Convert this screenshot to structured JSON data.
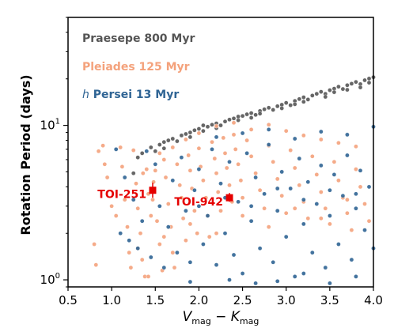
{
  "chart_data": {
    "type": "scatter",
    "xlabel": {
      "base1": "V",
      "sub1": "mag",
      "sep": " − ",
      "base2": "K",
      "sub2": "mag"
    },
    "ylabel": "Rotation Period (days)",
    "xlim": [
      0.5,
      4.0
    ],
    "ylim": [
      0.9,
      50
    ],
    "yscale": "log",
    "grid": false,
    "legend_position": "top-left",
    "x_ticks": [
      0.5,
      1.0,
      1.5,
      2.0,
      2.5,
      3.0,
      3.5,
      4.0
    ],
    "x_tick_labels": [
      "0.5",
      "1.0",
      "1.5",
      "2.0",
      "2.5",
      "3.0",
      "3.5",
      "4.0"
    ],
    "y_major_ticks": [
      1,
      10
    ],
    "y_tick_labels": [
      {
        "base": "10",
        "exp": "0"
      },
      {
        "base": "10",
        "exp": "1"
      }
    ],
    "legend": [
      {
        "series": "praesepe",
        "text": "Praesepe 800 Myr"
      },
      {
        "series": "pleiades",
        "text": "Pleiades 125 Myr"
      },
      {
        "series": "hpersei",
        "prefix": "h",
        "text": " Persei 13 Myr"
      }
    ],
    "series": [
      {
        "key": "praesepe",
        "name": "Praesepe 800 Myr",
        "color": "#555555",
        "points": [
          [
            1.25,
            4.9
          ],
          [
            1.3,
            6.2
          ],
          [
            1.35,
            6.6
          ],
          [
            1.45,
            7.2
          ],
          [
            1.5,
            6.8
          ],
          [
            1.55,
            7.5
          ],
          [
            1.6,
            7.8
          ],
          [
            1.65,
            8.0
          ],
          [
            1.7,
            8.2
          ],
          [
            1.75,
            7.9
          ],
          [
            1.8,
            8.6
          ],
          [
            1.85,
            8.8
          ],
          [
            1.9,
            9.0
          ],
          [
            1.95,
            9.3
          ],
          [
            2.0,
            9.5
          ],
          [
            2.05,
            9.2
          ],
          [
            2.1,
            9.8
          ],
          [
            2.15,
            10.1
          ],
          [
            2.2,
            10.3
          ],
          [
            2.25,
            10.0
          ],
          [
            2.3,
            10.6
          ],
          [
            2.35,
            10.9
          ],
          [
            2.4,
            11.1
          ],
          [
            2.45,
            10.8
          ],
          [
            2.5,
            11.5
          ],
          [
            2.55,
            11.8
          ],
          [
            2.6,
            12.0
          ],
          [
            2.65,
            11.7
          ],
          [
            2.7,
            12.4
          ],
          [
            2.75,
            12.7
          ],
          [
            2.8,
            13.0
          ],
          [
            2.85,
            12.6
          ],
          [
            2.9,
            13.3
          ],
          [
            2.95,
            13.6
          ],
          [
            3.0,
            14.0
          ],
          [
            3.05,
            13.5
          ],
          [
            3.1,
            14.4
          ],
          [
            3.15,
            14.8
          ],
          [
            3.2,
            15.2
          ],
          [
            3.25,
            14.7
          ],
          [
            3.3,
            15.6
          ],
          [
            3.35,
            16.0
          ],
          [
            3.4,
            16.5
          ],
          [
            3.45,
            16.0
          ],
          [
            3.5,
            16.9
          ],
          [
            3.55,
            17.3
          ],
          [
            3.6,
            17.8
          ],
          [
            3.65,
            17.2
          ],
          [
            3.7,
            18.2
          ],
          [
            3.75,
            18.6
          ],
          [
            3.8,
            19.1
          ],
          [
            3.85,
            18.5
          ],
          [
            3.9,
            19.6
          ],
          [
            3.95,
            20.1
          ],
          [
            4.0,
            20.5
          ],
          [
            1.6,
            7.1
          ],
          [
            1.9,
            8.4
          ],
          [
            2.2,
            9.6
          ],
          [
            2.45,
            11.4
          ],
          [
            2.7,
            11.9
          ],
          [
            2.95,
            12.9
          ],
          [
            3.2,
            14.2
          ],
          [
            3.45,
            15.3
          ],
          [
            3.7,
            17.0
          ],
          [
            3.95,
            18.9
          ],
          [
            2.05,
            10.0
          ],
          [
            2.6,
            11.2
          ],
          [
            3.1,
            13.7
          ],
          [
            3.55,
            16.4
          ],
          [
            3.85,
            17.6
          ]
        ]
      },
      {
        "key": "pleiades",
        "name": "Pleiades 125 Myr",
        "color": "#f4a27c",
        "points": [
          [
            0.8,
            1.7
          ],
          [
            0.82,
            1.25
          ],
          [
            0.85,
            6.8
          ],
          [
            0.9,
            7.4
          ],
          [
            0.92,
            5.6
          ],
          [
            0.95,
            4.6
          ],
          [
            1.0,
            3.0
          ],
          [
            1.05,
            2.6
          ],
          [
            1.1,
            7.2
          ],
          [
            1.12,
            5.4
          ],
          [
            1.15,
            3.3
          ],
          [
            1.18,
            2.2
          ],
          [
            1.2,
            1.5
          ],
          [
            1.22,
            1.2
          ],
          [
            1.25,
            6.9
          ],
          [
            1.28,
            4.2
          ],
          [
            1.3,
            2.9
          ],
          [
            1.33,
            2.0
          ],
          [
            1.35,
            1.35
          ],
          [
            1.38,
            1.05
          ],
          [
            1.4,
            5.2
          ],
          [
            1.42,
            3.6
          ],
          [
            1.45,
            2.6
          ],
          [
            1.47,
            3.3
          ],
          [
            1.48,
            4.3
          ],
          [
            1.5,
            5.1
          ],
          [
            1.52,
            2.4
          ],
          [
            1.55,
            1.7
          ],
          [
            1.58,
            1.15
          ],
          [
            1.6,
            6.0
          ],
          [
            1.62,
            4.6
          ],
          [
            1.65,
            3.1
          ],
          [
            1.68,
            2.2
          ],
          [
            1.7,
            1.5
          ],
          [
            1.72,
            1.2
          ],
          [
            1.75,
            5.6
          ],
          [
            1.78,
            4.1
          ],
          [
            1.8,
            3.4
          ],
          [
            1.82,
            2.5
          ],
          [
            1.85,
            1.8
          ],
          [
            1.88,
            6.4
          ],
          [
            1.9,
            5.1
          ],
          [
            1.92,
            3.9
          ],
          [
            1.95,
            2.8
          ],
          [
            1.98,
            2.0
          ],
          [
            2.0,
            7.1
          ],
          [
            2.02,
            5.4
          ],
          [
            2.05,
            4.4
          ],
          [
            2.08,
            3.4
          ],
          [
            2.1,
            2.6
          ],
          [
            2.12,
            1.9
          ],
          [
            2.15,
            7.8
          ],
          [
            2.18,
            6.1
          ],
          [
            2.2,
            4.9
          ],
          [
            2.22,
            3.7
          ],
          [
            2.25,
            2.8
          ],
          [
            2.28,
            8.3
          ],
          [
            2.3,
            6.6
          ],
          [
            2.32,
            5.3
          ],
          [
            2.35,
            4.1
          ],
          [
            2.38,
            3.2
          ],
          [
            2.4,
            8.7
          ],
          [
            2.42,
            7.0
          ],
          [
            2.45,
            5.6
          ],
          [
            2.48,
            4.4
          ],
          [
            2.5,
            3.4
          ],
          [
            2.55,
            8.0
          ],
          [
            2.6,
            6.3
          ],
          [
            2.65,
            4.9
          ],
          [
            2.7,
            3.8
          ],
          [
            2.75,
            2.9
          ],
          [
            2.8,
            7.4
          ],
          [
            2.85,
            5.8
          ],
          [
            2.9,
            4.5
          ],
          [
            2.95,
            3.5
          ],
          [
            3.0,
            2.7
          ],
          [
            3.05,
            6.9
          ],
          [
            3.1,
            5.3
          ],
          [
            3.15,
            4.1
          ],
          [
            3.2,
            3.2
          ],
          [
            3.25,
            2.5
          ],
          [
            3.3,
            6.3
          ],
          [
            3.35,
            4.8
          ],
          [
            3.4,
            3.7
          ],
          [
            3.45,
            2.9
          ],
          [
            3.5,
            2.3
          ],
          [
            3.55,
            5.8
          ],
          [
            3.6,
            4.4
          ],
          [
            3.65,
            3.4
          ],
          [
            3.7,
            2.7
          ],
          [
            3.75,
            2.1
          ],
          [
            3.8,
            5.2
          ],
          [
            3.85,
            4.0
          ],
          [
            3.9,
            3.1
          ],
          [
            3.95,
            2.4
          ],
          [
            1.42,
            1.05
          ],
          [
            1.36,
            4.9
          ],
          [
            1.55,
            6.6
          ],
          [
            1.7,
            7.2
          ],
          [
            1.85,
            8.1
          ],
          [
            2.0,
            8.9
          ],
          [
            2.2,
            9.9
          ],
          [
            2.4,
            10.4
          ],
          [
            2.6,
            9.4
          ],
          [
            2.8,
            10.1
          ],
          [
            3.0,
            9.2
          ],
          [
            3.2,
            8.6
          ],
          [
            3.4,
            8.1
          ],
          [
            3.6,
            7.7
          ],
          [
            3.8,
            7.3
          ],
          [
            1.3,
            1.6
          ],
          [
            1.6,
            1.9
          ],
          [
            1.9,
            2.3
          ],
          [
            2.2,
            2.0
          ],
          [
            2.5,
            2.6
          ],
          [
            2.8,
            2.2
          ],
          [
            3.1,
            2.9
          ],
          [
            3.4,
            2.5
          ],
          [
            3.7,
            3.3
          ]
        ]
      },
      {
        "key": "hpersei",
        "name": "h Persei 13 Myr",
        "color": "#2f6494",
        "points": [
          [
            1.05,
            7.0
          ],
          [
            1.1,
            2.0
          ],
          [
            1.15,
            4.6
          ],
          [
            1.2,
            1.8
          ],
          [
            1.25,
            3.3
          ],
          [
            1.3,
            1.6
          ],
          [
            1.35,
            2.4
          ],
          [
            1.4,
            6.8
          ],
          [
            1.45,
            1.4
          ],
          [
            1.5,
            5.6
          ],
          [
            1.55,
            3.0
          ],
          [
            1.6,
            1.2
          ],
          [
            1.65,
            2.2
          ],
          [
            1.7,
            4.4
          ],
          [
            1.75,
            1.5
          ],
          [
            1.8,
            6.2
          ],
          [
            1.85,
            2.8
          ],
          [
            1.9,
            1.3
          ],
          [
            1.95,
            3.8
          ],
          [
            2.0,
            5.2
          ],
          [
            2.05,
            1.7
          ],
          [
            2.1,
            2.6
          ],
          [
            2.15,
            7.0
          ],
          [
            2.2,
            1.25
          ],
          [
            2.25,
            4.2
          ],
          [
            2.3,
            2.0
          ],
          [
            2.35,
            5.8
          ],
          [
            2.4,
            1.45
          ],
          [
            2.45,
            3.2
          ],
          [
            2.5,
            1.1
          ],
          [
            2.55,
            6.6
          ],
          [
            2.6,
            2.4
          ],
          [
            2.65,
            4.6
          ],
          [
            2.7,
            1.6
          ],
          [
            2.75,
            3.6
          ],
          [
            2.8,
            7.5
          ],
          [
            2.85,
            1.3
          ],
          [
            2.9,
            2.8
          ],
          [
            2.95,
            5.0
          ],
          [
            3.0,
            1.9
          ],
          [
            3.05,
            3.9
          ],
          [
            3.1,
            1.05
          ],
          [
            3.15,
            6.1
          ],
          [
            3.2,
            2.3
          ],
          [
            3.25,
            4.3
          ],
          [
            3.3,
            1.5
          ],
          [
            3.35,
            3.1
          ],
          [
            3.4,
            5.5
          ],
          [
            3.45,
            1.2
          ],
          [
            3.5,
            2.6
          ],
          [
            3.55,
            4.8
          ],
          [
            3.6,
            1.7
          ],
          [
            3.65,
            3.5
          ],
          [
            3.7,
            6.4
          ],
          [
            3.75,
            1.35
          ],
          [
            3.8,
            2.9
          ],
          [
            3.85,
            5.1
          ],
          [
            3.9,
            2.1
          ],
          [
            3.95,
            4.0
          ],
          [
            4.0,
            1.6
          ],
          [
            2.2,
            8.4
          ],
          [
            2.5,
            8.9
          ],
          [
            2.8,
            9.4
          ],
          [
            3.1,
            8.2
          ],
          [
            3.4,
            9.1
          ],
          [
            3.7,
            8.7
          ],
          [
            4.0,
            9.8
          ],
          [
            2.35,
            1.0
          ],
          [
            2.65,
            0.95
          ],
          [
            2.9,
            0.98
          ],
          [
            3.2,
            1.1
          ],
          [
            3.5,
            0.95
          ],
          [
            3.8,
            1.05
          ],
          [
            1.9,
            0.97
          ],
          [
            2.0,
            3.0
          ],
          [
            2.3,
            3.4
          ],
          [
            2.6,
            3.0
          ],
          [
            2.9,
            3.9
          ],
          [
            3.2,
            3.3
          ],
          [
            3.5,
            3.8
          ],
          [
            3.8,
            3.6
          ]
        ]
      }
    ],
    "targets": [
      {
        "label": "TOI-251",
        "x": 1.47,
        "y": 3.8,
        "yerr_low": 0.4,
        "yerr_high": 0.45,
        "color": "#e50000",
        "label_side": "left"
      },
      {
        "label": "TOI-942",
        "x": 2.35,
        "y": 3.4,
        "yerr_low": 0.2,
        "yerr_high": 0.25,
        "color": "#e50000",
        "label_side": "left"
      }
    ]
  }
}
